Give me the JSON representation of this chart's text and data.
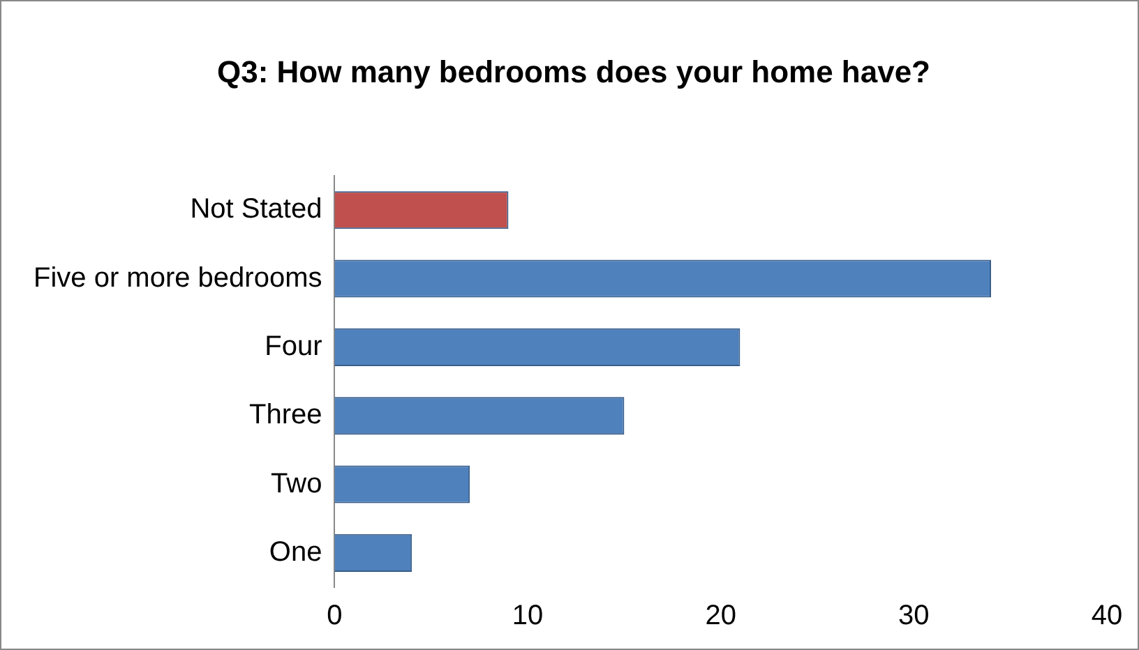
{
  "chart_data": {
    "type": "bar",
    "orientation": "horizontal",
    "title": "Q3: How many bedrooms does your home have?",
    "categories": [
      "Not Stated",
      "Five or more bedrooms",
      "Four",
      "Three",
      "Two",
      "One"
    ],
    "values": [
      9,
      34,
      21,
      15,
      7,
      4
    ],
    "colors": [
      "#c0504d",
      "#4f81bd",
      "#4f81bd",
      "#4f81bd",
      "#4f81bd",
      "#4f81bd"
    ],
    "xlim": [
      0,
      40
    ],
    "xticks": [
      0,
      10,
      20,
      30,
      40
    ],
    "grid": false,
    "legend": false
  }
}
